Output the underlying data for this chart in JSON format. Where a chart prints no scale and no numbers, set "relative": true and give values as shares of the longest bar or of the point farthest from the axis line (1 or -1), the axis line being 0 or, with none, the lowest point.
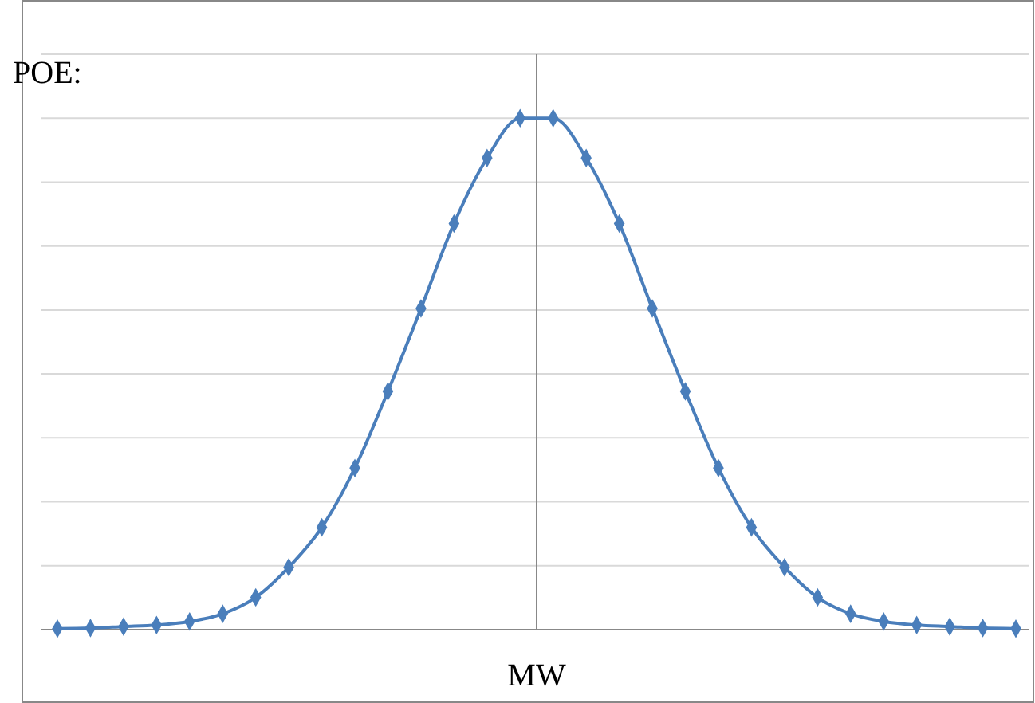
{
  "chart_data": {
    "type": "line",
    "relative": true,
    "xlabel": "MW",
    "ylabel": "POE:",
    "categories": [
      null,
      null,
      null,
      null,
      null,
      null,
      null,
      null,
      null,
      null,
      null,
      null,
      null,
      null,
      null,
      null,
      null,
      null,
      null,
      null,
      null,
      null,
      null,
      null,
      null,
      null,
      null,
      null,
      null,
      null
    ],
    "series": [
      {
        "color": "#4a7ebb",
        "values": [
          0.002,
          0.003,
          0.006,
          0.009,
          0.016,
          0.031,
          0.063,
          0.122,
          0.2,
          0.316,
          0.466,
          0.628,
          0.794,
          0.922,
          1,
          1,
          0.922,
          0.794,
          0.628,
          0.466,
          0.316,
          0.2,
          0.122,
          0.063,
          0.031,
          0.016,
          0.009,
          0.006,
          0.003,
          0.002
        ]
      }
    ],
    "marker": "diamond",
    "line_style": "solid",
    "grid": "y"
  }
}
